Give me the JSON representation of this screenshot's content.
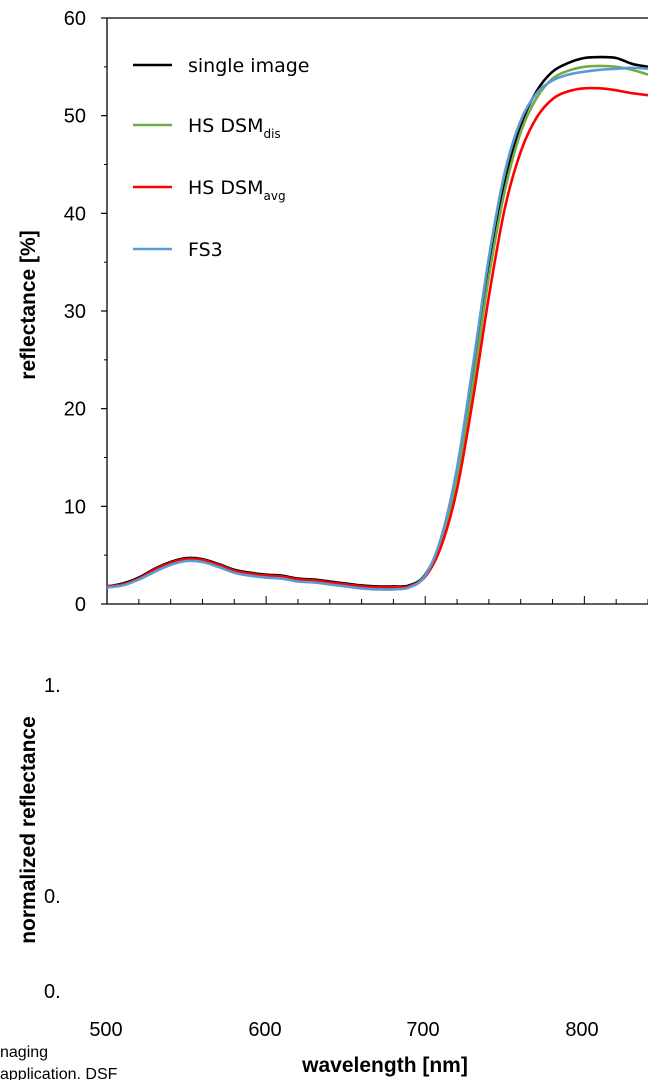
{
  "chart_data": [
    {
      "type": "line",
      "xlabel": "",
      "ylabel": "reflectance [%]",
      "ylim": [
        0,
        60
      ],
      "yticks": [
        "0",
        "10",
        "20",
        "30",
        "40",
        "50",
        "60"
      ],
      "xlim": [
        500,
        840
      ],
      "grid": false,
      "legend": {
        "position": "top-left",
        "entries": [
          {
            "base": "single image",
            "sub": ""
          },
          {
            "base": "HS DSM",
            "sub": "dis"
          },
          {
            "base": "HS DSM",
            "sub": "avg"
          },
          {
            "base": "FS3",
            "sub": ""
          }
        ]
      },
      "series": [
        {
          "name": "single image",
          "color": "#000000",
          "x": [
            500,
            510,
            520,
            530,
            540,
            550,
            560,
            570,
            580,
            590,
            600,
            610,
            620,
            630,
            640,
            650,
            660,
            670,
            680,
            690,
            700,
            710,
            720,
            730,
            740,
            750,
            760,
            770,
            780,
            790,
            800,
            810,
            820,
            830,
            840
          ],
          "y": [
            1.8,
            2.1,
            2.7,
            3.6,
            4.3,
            4.7,
            4.6,
            4.1,
            3.5,
            3.2,
            3.0,
            2.9,
            2.6,
            2.5,
            2.3,
            2.1,
            1.9,
            1.8,
            1.8,
            1.9,
            3.0,
            6.5,
            13.0,
            23.0,
            34.0,
            43.0,
            49.0,
            52.5,
            54.5,
            55.4,
            55.9,
            56.0,
            55.9,
            55.3,
            55.0
          ]
        },
        {
          "name": "HS DSM dis",
          "color": "#70ad47",
          "x": [
            500,
            510,
            520,
            530,
            540,
            550,
            560,
            570,
            580,
            590,
            600,
            610,
            620,
            630,
            640,
            650,
            660,
            670,
            680,
            690,
            700,
            710,
            720,
            730,
            740,
            750,
            760,
            770,
            780,
            790,
            800,
            810,
            820,
            830,
            840
          ],
          "y": [
            1.8,
            2.0,
            2.6,
            3.5,
            4.2,
            4.6,
            4.5,
            4.0,
            3.4,
            3.1,
            2.9,
            2.8,
            2.5,
            2.4,
            2.2,
            2.0,
            1.8,
            1.7,
            1.7,
            1.8,
            2.9,
            6.3,
            12.7,
            22.6,
            33.5,
            42.3,
            48.3,
            51.8,
            53.8,
            54.6,
            55.0,
            55.1,
            55.0,
            54.7,
            54.2
          ]
        },
        {
          "name": "HS DSM avg",
          "color": "#ff0000",
          "x": [
            500,
            510,
            520,
            530,
            540,
            550,
            560,
            570,
            580,
            590,
            600,
            610,
            620,
            630,
            640,
            650,
            660,
            670,
            680,
            690,
            700,
            710,
            720,
            730,
            740,
            750,
            760,
            770,
            780,
            790,
            800,
            810,
            820,
            830,
            840
          ],
          "y": [
            1.8,
            2.0,
            2.6,
            3.5,
            4.2,
            4.6,
            4.5,
            4.0,
            3.4,
            3.1,
            2.9,
            2.8,
            2.5,
            2.4,
            2.2,
            2.0,
            1.8,
            1.7,
            1.7,
            1.8,
            2.8,
            5.9,
            11.8,
            21.0,
            31.5,
            40.5,
            46.3,
            49.8,
            51.7,
            52.5,
            52.8,
            52.8,
            52.6,
            52.3,
            52.1
          ]
        },
        {
          "name": "FS3",
          "color": "#5b9bd5",
          "x": [
            500,
            510,
            520,
            530,
            540,
            550,
            560,
            570,
            580,
            590,
            600,
            610,
            620,
            630,
            640,
            650,
            660,
            670,
            680,
            690,
            700,
            710,
            720,
            730,
            740,
            750,
            760,
            770,
            780,
            790,
            800,
            810,
            820,
            830,
            840
          ],
          "y": [
            1.7,
            1.9,
            2.5,
            3.3,
            4.0,
            4.4,
            4.3,
            3.8,
            3.2,
            2.9,
            2.7,
            2.6,
            2.3,
            2.2,
            2.0,
            1.8,
            1.6,
            1.5,
            1.5,
            1.7,
            2.9,
            6.8,
            14.0,
            24.5,
            35.5,
            44.2,
            49.5,
            52.3,
            53.6,
            54.2,
            54.5,
            54.7,
            54.8,
            54.9,
            54.8
          ]
        }
      ]
    },
    {
      "type": "line",
      "xlabel": "wavelength [nm]",
      "ylabel": "normalized reflectance",
      "xticks": [
        "500",
        "600",
        "700",
        "800"
      ],
      "yticks": [
        "1.",
        "0.",
        "0."
      ],
      "series": []
    }
  ],
  "caption_fragments": [
    "naging",
    "application. DSF"
  ]
}
